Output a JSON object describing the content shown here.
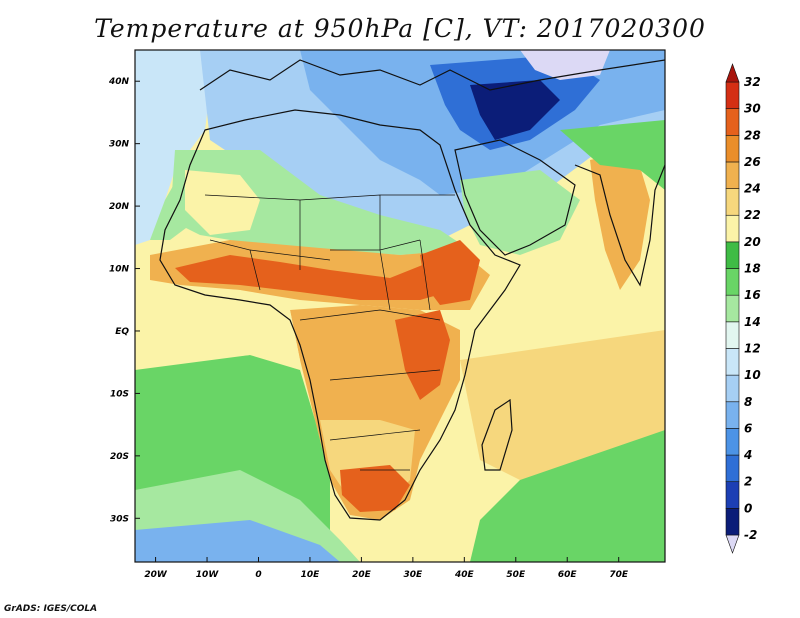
{
  "title": "Temperature at 950hPa [C], VT: 2017020300",
  "credit": "GrADS: IGES/COLA",
  "map": {
    "lon_range": [
      -24,
      79
    ],
    "lat_range": [
      -37,
      45
    ],
    "lon_ticks": [
      {
        "value": -20,
        "label": "20W"
      },
      {
        "value": -10,
        "label": "10W"
      },
      {
        "value": 0,
        "label": "0"
      },
      {
        "value": 10,
        "label": "10E"
      },
      {
        "value": 20,
        "label": "20E"
      },
      {
        "value": 30,
        "label": "30E"
      },
      {
        "value": 40,
        "label": "40E"
      },
      {
        "value": 50,
        "label": "50E"
      },
      {
        "value": 60,
        "label": "60E"
      },
      {
        "value": 70,
        "label": "70E"
      }
    ],
    "lat_ticks": [
      {
        "value": 40,
        "label": "40N"
      },
      {
        "value": 30,
        "label": "30N"
      },
      {
        "value": 20,
        "label": "20N"
      },
      {
        "value": 10,
        "label": "10N"
      },
      {
        "value": 0,
        "label": "EQ"
      },
      {
        "value": -10,
        "label": "10S"
      },
      {
        "value": -20,
        "label": "20S"
      },
      {
        "value": -30,
        "label": "30S"
      }
    ]
  },
  "colorbar": {
    "levels": [
      {
        "label": "-2",
        "color": "#dcd9f5"
      },
      {
        "label": "0",
        "color": "#0b1d78"
      },
      {
        "label": "2",
        "color": "#1c3fb4"
      },
      {
        "label": "4",
        "color": "#2f6fd6"
      },
      {
        "label": "6",
        "color": "#4c93e6"
      },
      {
        "label": "8",
        "color": "#79b2ee"
      },
      {
        "label": "10",
        "color": "#a6cff4"
      },
      {
        "label": "12",
        "color": "#c9e6f8"
      },
      {
        "label": "14",
        "color": "#e2f6f0"
      },
      {
        "label": "16",
        "color": "#a6e8a0"
      },
      {
        "label": "18",
        "color": "#69d566"
      },
      {
        "label": "20",
        "color": "#3fbc45"
      },
      {
        "label": "22",
        "color": "#fbf3a8"
      },
      {
        "label": "24",
        "color": "#f6d77d"
      },
      {
        "label": "26",
        "color": "#f0b14f"
      },
      {
        "label": "28",
        "color": "#ea8e2a"
      },
      {
        "label": "30",
        "color": "#e5611c"
      },
      {
        "label": "32",
        "color": "#d42f14"
      },
      {
        "label": "",
        "color": "#a8140c"
      }
    ]
  }
}
